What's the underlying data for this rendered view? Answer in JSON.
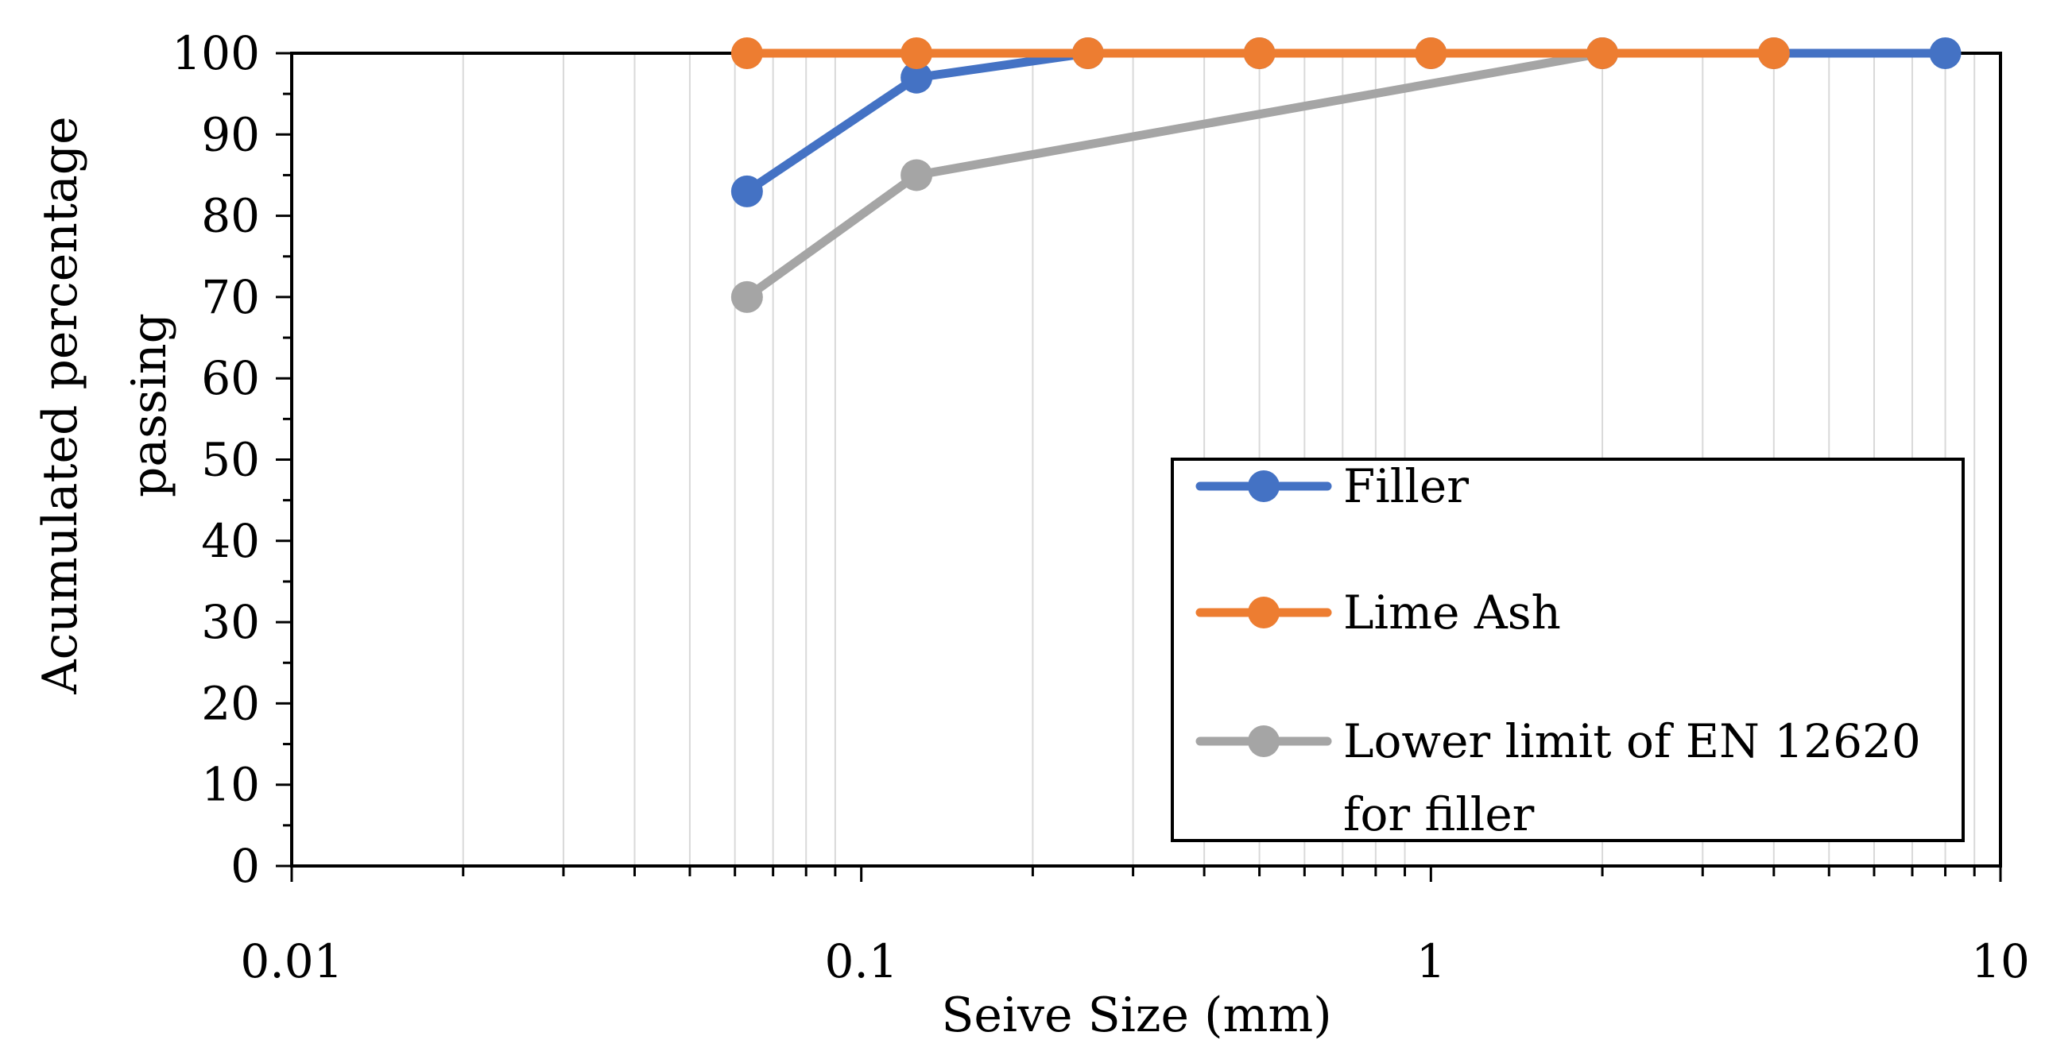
{
  "chart_data": {
    "type": "line",
    "x_scale": "log",
    "title": "",
    "xlabel": "Seive Size (mm)",
    "ylabel_lines": [
      "Acumulated percentage",
      "passing"
    ],
    "xlim": [
      0.01,
      10
    ],
    "ylim": [
      0,
      100
    ],
    "x_ticks": [
      0.01,
      0.1,
      1,
      10
    ],
    "x_tick_labels": [
      "0.01",
      "0.1",
      "1",
      "10"
    ],
    "y_ticks": [
      0,
      10,
      20,
      30,
      40,
      50,
      60,
      70,
      80,
      90,
      100
    ],
    "y_tick_labels": [
      "0",
      "10",
      "20",
      "30",
      "40",
      "50",
      "60",
      "70",
      "80",
      "90",
      "100"
    ],
    "grid": "vertical minor lines",
    "legend_position": "lower-right",
    "series": [
      {
        "name": "Filler",
        "color": "#4472C4",
        "x": [
          0.063,
          0.125,
          0.25,
          0.5,
          1,
          2,
          4,
          8
        ],
        "values": [
          83,
          97,
          100,
          100,
          100,
          100,
          100,
          100
        ]
      },
      {
        "name": "Lime Ash",
        "color": "#ED7D31",
        "x": [
          0.063,
          0.125,
          0.25,
          0.5,
          1,
          2,
          4
        ],
        "values": [
          100,
          100,
          100,
          100,
          100,
          100,
          100
        ]
      },
      {
        "name": "Lower limit of EN 12620 for filler",
        "legend_lines": [
          "Lower limit of EN 12620",
          "for filler"
        ],
        "color": "#A5A5A5",
        "x": [
          0.063,
          0.125,
          2
        ],
        "values": [
          70,
          85,
          100
        ]
      }
    ]
  }
}
